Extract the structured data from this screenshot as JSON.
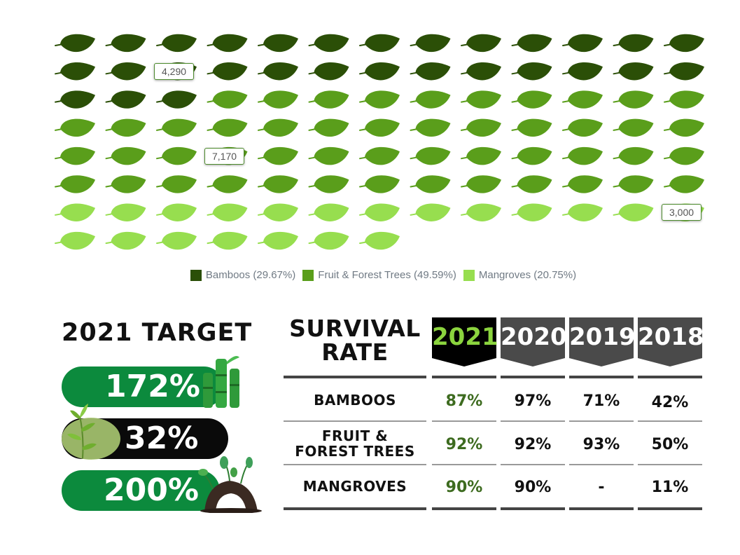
{
  "chart_data": {
    "type": "pictogram",
    "icon": "leaf-icon",
    "categories": [
      "Bamboos",
      "Fruit & Forest Trees",
      "Mangroves"
    ],
    "values": [
      4290,
      7170,
      3000
    ],
    "percentages": [
      29.67,
      49.59,
      20.75
    ],
    "icon_counts": [
      29,
      49,
      20
    ],
    "colors": [
      "#2b4f07",
      "#5a9e1b",
      "#97de4f"
    ],
    "callouts": [
      "4,290",
      "7,170",
      "3,000"
    ],
    "legend": [
      {
        "label": "Bamboos (29.67%)",
        "color": "#2b4f07"
      },
      {
        "label": "Fruit & Forest Trees (49.59%)",
        "color": "#5a9e1b"
      },
      {
        "label": "Mangroves (20.75%)",
        "color": "#97de4f"
      }
    ]
  },
  "target": {
    "title": "2021 TARGET",
    "bamboos": "172%",
    "fruit_forest_trees": "32%",
    "mangroves": "200%"
  },
  "survival": {
    "title_line1": "SURVIVAL",
    "title_line2": "RATE",
    "years": [
      "2021",
      "2020",
      "2019",
      "2018"
    ],
    "rows": [
      {
        "label_line1": "BAMBOOS",
        "label_line2": "",
        "values": [
          "87%",
          "97%",
          "71%",
          "42%"
        ]
      },
      {
        "label_line1": "FRUIT &",
        "label_line2": "FOREST TREES",
        "values": [
          "92%",
          "92%",
          "93%",
          "50%"
        ]
      },
      {
        "label_line1": "MANGROVES",
        "label_line2": "",
        "values": [
          "90%",
          "90%",
          "-",
          "11%"
        ]
      }
    ]
  },
  "colors": {
    "highlight_year_bg": "#000000",
    "highlight_year_text": "#8bd43e",
    "year_bg": "#4a4a4a",
    "highlight_value": "#3d6b1f",
    "pill_green": "#0c8a3d"
  }
}
